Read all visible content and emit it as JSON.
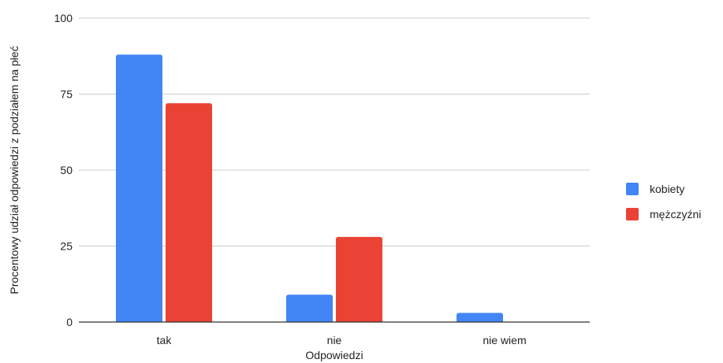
{
  "chart_data": {
    "type": "bar",
    "title": "",
    "xlabel": "Odpowiedzi",
    "ylabel": "Procentowy udział odpowiedzi z podziałem na płeć",
    "categories": [
      "tak",
      "nie",
      "nie wiem"
    ],
    "series": [
      {
        "name": "kobiety",
        "color": "#4285F4",
        "values": [
          88,
          9,
          3
        ]
      },
      {
        "name": "mężczyźni",
        "color": "#EA4335",
        "values": [
          72,
          28,
          0
        ]
      }
    ],
    "ylim": [
      0,
      100
    ],
    "yticks": [
      0,
      25,
      50,
      75,
      100
    ],
    "grid": true,
    "legend_position": "right"
  }
}
